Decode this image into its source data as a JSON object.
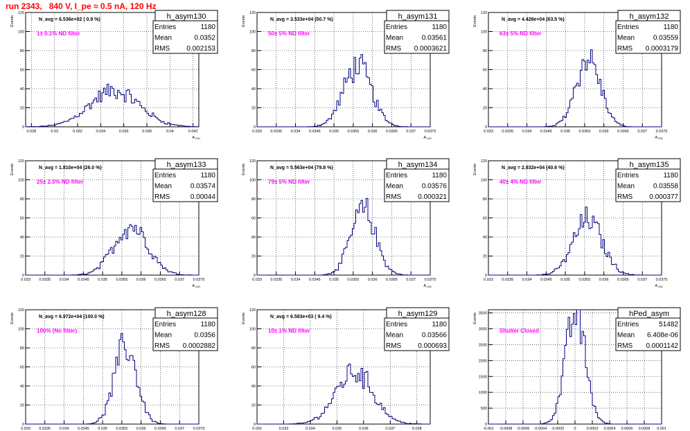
{
  "page_title": "run 2343,   840 V, I_pe ≈ 0.5 nA, 120 Hz",
  "common": {
    "ylabel": "Events",
    "xlabel": "A",
    "xlabel_sub": "U/D",
    "stats_labels": [
      "Entries",
      "Mean",
      "RMS"
    ],
    "line_color": "#000080",
    "annotation_color": "#ff00ff",
    "title_color": "#ff0000"
  },
  "chart_data": [
    {
      "type": "histogram",
      "name": "h_asym130",
      "navg": "N_avg = 6.536e+02 ( 0.9 %)",
      "filter": "1± 0.1% ND filter",
      "stats": {
        "Entries": "1180",
        "Mean": "0.0352",
        "RMS": "0.002153"
      },
      "xlim": [
        0.0275,
        0.0425
      ],
      "ylim": [
        0,
        120
      ],
      "xticks": [
        0.028,
        0.03,
        0.032,
        0.034,
        0.036,
        0.038,
        0.04,
        0.042
      ],
      "xtick_labels": [
        "0.028",
        "0.03",
        "0.032",
        "0.034",
        "0.036",
        "0.038",
        "0.04",
        "0.042"
      ],
      "yticks": [
        0,
        20,
        40,
        60,
        80,
        100,
        120
      ],
      "mean": 0.0352,
      "sigma": 0.002153,
      "peak": 38
    },
    {
      "type": "histogram",
      "name": "h_asym131",
      "navg": "N_avg = 3.533e+04 (50.7 %)",
      "filter": "50± 5% ND filter",
      "stats": {
        "Entries": "1180",
        "Mean": "0.03561",
        "RMS": "0.0003621"
      },
      "xlim": [
        0.033,
        0.0375
      ],
      "ylim": [
        0,
        120
      ],
      "xticks": [
        0.033,
        0.0335,
        0.034,
        0.0345,
        0.035,
        0.0355,
        0.036,
        0.0365,
        0.037,
        0.0375
      ],
      "xtick_labels": [
        "0.033",
        "0.0335",
        "0.034",
        "0.0345",
        "0.035",
        "0.0355",
        "0.036",
        "0.0365",
        "0.037",
        "0.0375"
      ],
      "yticks": [
        0,
        20,
        40,
        60,
        80,
        100,
        120
      ],
      "mean": 0.03561,
      "sigma": 0.0003621,
      "peak": 64
    },
    {
      "type": "histogram",
      "name": "h_asym132",
      "navg": "N_avg = 4.428e+04 (63.5 %)",
      "filter": "63± 5% ND filter",
      "stats": {
        "Entries": "1180",
        "Mean": "0.03559",
        "RMS": "0.0003179"
      },
      "xlim": [
        0.033,
        0.0375
      ],
      "ylim": [
        0,
        120
      ],
      "xticks": [
        0.033,
        0.0335,
        0.034,
        0.0345,
        0.035,
        0.0355,
        0.036,
        0.0365,
        0.037,
        0.0375
      ],
      "xtick_labels": [
        "0.033",
        "0.0335",
        "0.034",
        "0.0345",
        "0.035",
        "0.0355",
        "0.036",
        "0.0365",
        "0.037",
        "0.0375"
      ],
      "yticks": [
        0,
        20,
        40,
        60,
        80,
        100,
        120
      ],
      "mean": 0.03559,
      "sigma": 0.0003179,
      "peak": 72
    },
    {
      "type": "histogram",
      "name": "h_asym133",
      "navg": "N_avg = 1.810e+04 (26.0 %)",
      "filter": "25± 2.5% ND filter",
      "stats": {
        "Entries": "1180",
        "Mean": "0.03574",
        "RMS": "0.00044"
      },
      "xlim": [
        0.033,
        0.0375
      ],
      "ylim": [
        0,
        120
      ],
      "xticks": [
        0.033,
        0.0335,
        0.034,
        0.0345,
        0.035,
        0.0355,
        0.036,
        0.0365,
        0.037,
        0.0375
      ],
      "xtick_labels": [
        "0.033",
        "0.0335",
        "0.034",
        "0.0345",
        "0.035",
        "0.0355",
        "0.036",
        "0.0365",
        "0.037",
        "0.0375"
      ],
      "yticks": [
        0,
        20,
        40,
        60,
        80,
        100,
        120
      ],
      "mean": 0.03574,
      "sigma": 0.00044,
      "peak": 52
    },
    {
      "type": "histogram",
      "name": "h_asym134",
      "navg": "N_avg = 5.563e+04 (79.8 %)",
      "filter": "79± 5% ND filter",
      "stats": {
        "Entries": "1180",
        "Mean": "0.03576",
        "RMS": "0.000321"
      },
      "xlim": [
        0.033,
        0.0375
      ],
      "ylim": [
        0,
        120
      ],
      "xticks": [
        0.033,
        0.0335,
        0.034,
        0.0345,
        0.035,
        0.0355,
        0.036,
        0.0365,
        0.037,
        0.0375
      ],
      "xtick_labels": [
        "0.033",
        "0.0335",
        "0.034",
        "0.0345",
        "0.035",
        "0.0355",
        "0.036",
        "0.0365",
        "0.037",
        "0.0375"
      ],
      "yticks": [
        0,
        20,
        40,
        60,
        80,
        100,
        120
      ],
      "mean": 0.03576,
      "sigma": 0.000321,
      "peak": 68
    },
    {
      "type": "histogram",
      "name": "h_asym135",
      "navg": "N_avg = 2.832e+04 (40.6 %)",
      "filter": "40± 4% ND filter",
      "stats": {
        "Entries": "1180",
        "Mean": "0.03558",
        "RMS": "0.000377"
      },
      "xlim": [
        0.033,
        0.0375
      ],
      "ylim": [
        0,
        120
      ],
      "xticks": [
        0.033,
        0.0335,
        0.034,
        0.0345,
        0.035,
        0.0355,
        0.036,
        0.0365,
        0.037,
        0.0375
      ],
      "xtick_labels": [
        "0.033",
        "0.0335",
        "0.034",
        "0.0345",
        "0.035",
        "0.0355",
        "0.036",
        "0.0365",
        "0.037",
        "0.0375"
      ],
      "yticks": [
        0,
        20,
        40,
        60,
        80,
        100,
        120
      ],
      "mean": 0.03558,
      "sigma": 0.000377,
      "peak": 58
    },
    {
      "type": "histogram",
      "name": "h_asym128",
      "navg": "N_avg = 6.972e+04 (100.0 %)",
      "filter": "100% (No filter)",
      "stats": {
        "Entries": "1180",
        "Mean": "0.0356",
        "RMS": "0.0002882"
      },
      "xlim": [
        0.033,
        0.0375
      ],
      "ylim": [
        0,
        120
      ],
      "xticks": [
        0.033,
        0.0335,
        0.034,
        0.0345,
        0.035,
        0.0355,
        0.036,
        0.0365,
        0.037,
        0.0375
      ],
      "xtick_labels": [
        "0.033",
        "0.0335",
        "0.034",
        "0.0345",
        "0.035",
        "0.0355",
        "0.036",
        "0.0365",
        "0.037",
        "0.0375"
      ],
      "yticks": [
        0,
        20,
        40,
        60,
        80,
        100,
        120
      ],
      "mean": 0.0356,
      "sigma": 0.0002882,
      "peak": 82
    },
    {
      "type": "histogram",
      "name": "h_asym129",
      "navg": "N_avg = 6.583e+03 ( 9.4 %)",
      "filter": "10± 1% ND filter",
      "stats": {
        "Entries": "1180",
        "Mean": "0.03566",
        "RMS": "0.000693"
      },
      "xlim": [
        0.032,
        0.0385
      ],
      "ylim": [
        0,
        120
      ],
      "xticks": [
        0.032,
        0.033,
        0.034,
        0.035,
        0.036,
        0.037,
        0.038
      ],
      "xtick_labels": [
        "0.032",
        "0.033",
        "0.034",
        "0.035",
        "0.036",
        "0.037",
        "0.038"
      ],
      "yticks": [
        0,
        20,
        40,
        60,
        80,
        100,
        120
      ],
      "mean": 0.03566,
      "sigma": 0.000693,
      "peak": 55
    },
    {
      "type": "histogram",
      "name": "hPed_asym",
      "navg": "",
      "filter": "Shutter Closed",
      "stats": {
        "Entries": "51482",
        "Mean": "6.408e-06",
        "RMS": "0.0001142"
      },
      "xlim": [
        -0.001,
        0.001
      ],
      "ylim": [
        0,
        3600
      ],
      "xticks": [
        -0.001,
        -0.0008,
        -0.0006,
        -0.0004,
        -0.0002,
        0,
        0.0002,
        0.0004,
        0.0006,
        0.0008,
        0.001
      ],
      "xtick_labels": [
        "-0.001",
        "-0.0008",
        "-0.0006",
        "-0.0004",
        "-0.0002",
        "0",
        "0.0002",
        "0.0004",
        "0.0006",
        "0.0008",
        "0.001"
      ],
      "yticks": [
        0,
        500,
        1000,
        1500,
        2000,
        2500,
        3000,
        3500
      ],
      "mean": 6.4e-06,
      "sigma": 0.0001142,
      "peak": 3500
    }
  ]
}
